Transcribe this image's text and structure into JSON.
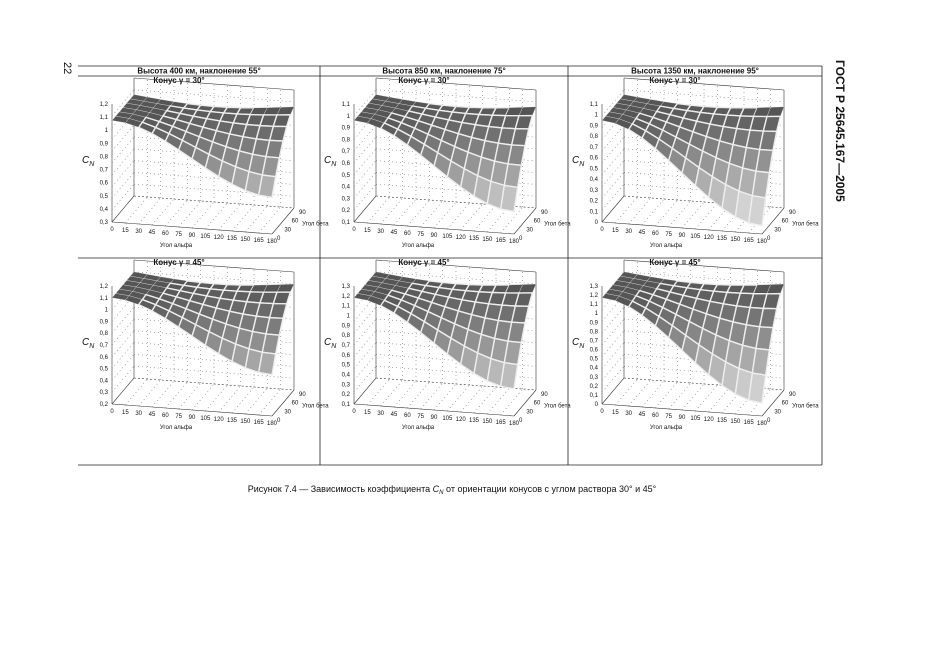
{
  "page_number": "22",
  "header": "ГОСТ Р 25645.167—2005",
  "columns": [
    "Высота 400 км, наклонение 55°",
    "Высота 850 км, наклонение 75°",
    "Высота 1350 км, наклонение 95°"
  ],
  "rows": [
    "Конус γ = 30°",
    "Конус γ = 45°"
  ],
  "axes": {
    "y_label": {
      "main": "C",
      "sub": "N"
    },
    "x_ticks": [
      "0",
      "15",
      "30",
      "45",
      "60",
      "75",
      "90",
      "105",
      "120",
      "135",
      "150",
      "165",
      "180"
    ],
    "x_label": "Угол альфа",
    "z_ticks": [
      "0",
      "30",
      "60",
      "90"
    ],
    "z_label": "Угол бета"
  },
  "plots": [
    {
      "y_ticks": [
        "0,3",
        "0,4",
        "0,5",
        "0,6",
        "0,7",
        "0,8",
        "0,9",
        "1",
        "1,1",
        "1,2"
      ]
    },
    {
      "y_ticks": [
        "0,1",
        "0,2",
        "0,3",
        "0,4",
        "0,5",
        "0,6",
        "0,7",
        "0,8",
        "0,9",
        "1",
        "1,1"
      ]
    },
    {
      "y_ticks": [
        "0",
        "0,1",
        "0,2",
        "0,3",
        "0,4",
        "0,5",
        "0,6",
        "0,7",
        "0,8",
        "0,9",
        "1",
        "1,1"
      ]
    },
    {
      "y_ticks": [
        "0,2",
        "0,3",
        "0,4",
        "0,5",
        "0,6",
        "0,7",
        "0,8",
        "0,9",
        "1",
        "1,1",
        "1,2"
      ]
    },
    {
      "y_ticks": [
        "0,1",
        "0,2",
        "0,3",
        "0,4",
        "0,5",
        "0,6",
        "0,7",
        "0,8",
        "0,9",
        "1",
        "1,1",
        "1,2",
        "1,3"
      ]
    },
    {
      "y_ticks": [
        "0",
        "0,1",
        "0,2",
        "0,3",
        "0,4",
        "0,5",
        "0,6",
        "0,7",
        "0,8",
        "0,9",
        "1",
        "1,1",
        "1,2",
        "1,3"
      ]
    }
  ],
  "caption": {
    "before": "Рисунок 7.4 — Зависимость коэффициента ",
    "symbol": "C",
    "sub": "N",
    "after": " от ориентации  конусов с углом раствора 30° и 45°"
  }
}
